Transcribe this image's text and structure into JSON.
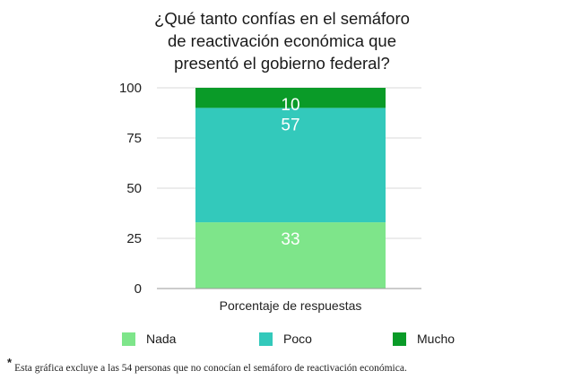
{
  "chart_data": {
    "type": "bar",
    "stacked": true,
    "title_lines": [
      "¿Qué tanto confías en el semáforo",
      "de reactivación económica que",
      "presentó el gobierno federal?"
    ],
    "categories": [
      "Porcentaje de respuestas"
    ],
    "series": [
      {
        "name": "Nada",
        "values": [
          33
        ],
        "color": "#7ee58a"
      },
      {
        "name": "Poco",
        "values": [
          57
        ],
        "color": "#33c9bb"
      },
      {
        "name": "Mucho",
        "values": [
          10
        ],
        "color": "#0a9b28"
      }
    ],
    "yticks": [
      "0",
      "25",
      "50",
      "75",
      "100"
    ],
    "ylim": [
      0,
      100
    ],
    "grid": true,
    "legend_position": "bottom"
  },
  "footnote": {
    "marker": "*",
    "text": "Esta gráfica excluye a las 54 personas que no conocían el semáforo de reactivación económica."
  }
}
